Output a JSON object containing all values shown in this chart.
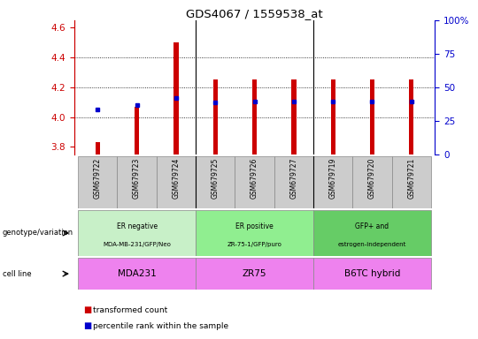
{
  "title": "GDS4067 / 1559538_at",
  "samples": [
    "GSM679722",
    "GSM679723",
    "GSM679724",
    "GSM679725",
    "GSM679726",
    "GSM679727",
    "GSM679719",
    "GSM679720",
    "GSM679721"
  ],
  "red_values": [
    3.83,
    4.07,
    4.5,
    4.25,
    4.25,
    4.25,
    4.25,
    4.25,
    4.25
  ],
  "blue_values": [
    4.05,
    4.08,
    4.13,
    4.1,
    4.105,
    4.105,
    4.105,
    4.105,
    4.105
  ],
  "ylim_left": [
    3.75,
    4.65
  ],
  "ylim_right": [
    0,
    100
  ],
  "yticks_left": [
    3.8,
    4.0,
    4.2,
    4.4,
    4.6
  ],
  "yticks_right": [
    0,
    25,
    50,
    75,
    100
  ],
  "ytick_labels_right": [
    "0",
    "25",
    "50",
    "75",
    "100%"
  ],
  "group_boundaries": [
    0,
    3,
    6,
    9
  ],
  "group_labels_geno_line1": [
    "ER negative",
    "ER positive",
    "GFP+ and"
  ],
  "group_labels_geno_line2": [
    "MDA-MB-231/GFP/Neo",
    "ZR-75-1/GFP/puro",
    "estrogen-independent"
  ],
  "group_labels_cell": [
    "MDA231",
    "ZR75",
    "B6TC hybrid"
  ],
  "group_colors_geno": [
    "#c8f0c8",
    "#90ee90",
    "#66cc66"
  ],
  "group_colors_cell": [
    "#ee82ee",
    "#ee82ee",
    "#ee82ee"
  ],
  "legend_red": "transformed count",
  "legend_blue": "percentile rank within the sample",
  "left_label_geno": "genotype/variation",
  "left_label_cell": "cell line",
  "bar_color": "#cc0000",
  "marker_color": "#0000cc",
  "axis_color_left": "#cc0000",
  "axis_color_right": "#0000cc",
  "tick_bg_color": "#cccccc",
  "grid_yticks": [
    4.0,
    4.2,
    4.4
  ]
}
